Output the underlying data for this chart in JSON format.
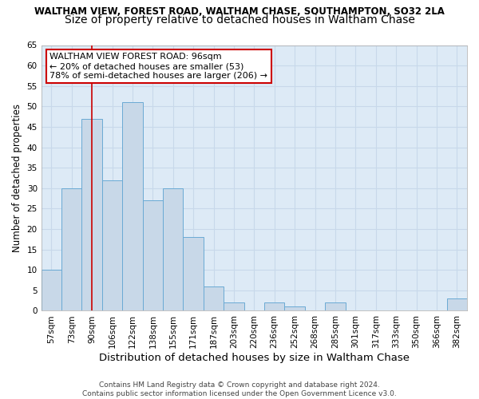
{
  "title": "WALTHAM VIEW, FOREST ROAD, WALTHAM CHASE, SOUTHAMPTON, SO32 2LA",
  "subtitle": "Size of property relative to detached houses in Waltham Chase",
  "xlabel": "Distribution of detached houses by size in Waltham Chase",
  "ylabel": "Number of detached properties",
  "categories": [
    "57sqm",
    "73sqm",
    "90sqm",
    "106sqm",
    "122sqm",
    "138sqm",
    "155sqm",
    "171sqm",
    "187sqm",
    "203sqm",
    "220sqm",
    "236sqm",
    "252sqm",
    "268sqm",
    "285sqm",
    "301sqm",
    "317sqm",
    "333sqm",
    "350sqm",
    "366sqm",
    "382sqm"
  ],
  "values": [
    10,
    30,
    47,
    32,
    51,
    27,
    30,
    18,
    6,
    2,
    0,
    2,
    1,
    0,
    2,
    0,
    0,
    0,
    0,
    0,
    3
  ],
  "bar_color": "#c8d8e8",
  "bar_edge_color": "#6aaad4",
  "vline_x": 2,
  "vline_color": "#cc0000",
  "annotation_text": "WALTHAM VIEW FOREST ROAD: 96sqm\n← 20% of detached houses are smaller (53)\n78% of semi-detached houses are larger (206) →",
  "annotation_box_color": "#ffffff",
  "annotation_box_edge": "#cc0000",
  "ylim": [
    0,
    65
  ],
  "yticks": [
    0,
    5,
    10,
    15,
    20,
    25,
    30,
    35,
    40,
    45,
    50,
    55,
    60,
    65
  ],
  "grid_color": "#c8d8ea",
  "background_color": "#ddeaf6",
  "footer": "Contains HM Land Registry data © Crown copyright and database right 2024.\nContains public sector information licensed under the Open Government Licence v3.0.",
  "title_fontsize": 8.5,
  "subtitle_fontsize": 10,
  "xlabel_fontsize": 9.5,
  "ylabel_fontsize": 8.5,
  "tick_fontsize": 7.5,
  "annotation_fontsize": 8,
  "footer_fontsize": 6.5
}
